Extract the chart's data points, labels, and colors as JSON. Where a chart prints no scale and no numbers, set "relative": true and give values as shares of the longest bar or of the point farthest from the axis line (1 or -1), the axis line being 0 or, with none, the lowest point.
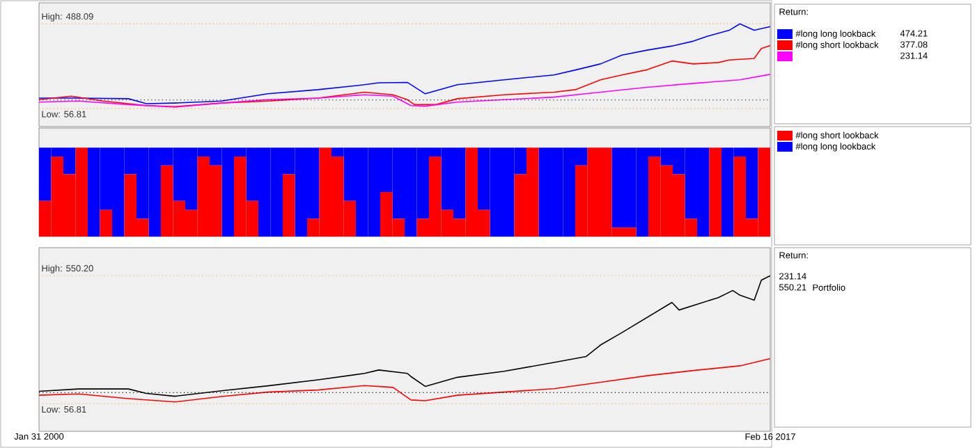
{
  "chart_data": [
    {
      "type": "line",
      "legend": "right",
      "legend_title": "Return:",
      "xlim": [
        "2000-01-31",
        "2017-02-16"
      ],
      "ylim": [
        -35,
        595
      ],
      "tick_labels": false,
      "series": [
        {
          "name": "#long long lookback",
          "color": "#0000ff",
          "x": [
            "2000-01-31",
            "2000-12",
            "2002-03",
            "2002-08",
            "2003-04",
            "2004-05",
            "2005-06",
            "2006-08",
            "2007-09",
            "2008-01",
            "2008-09",
            "2009-02",
            "2009-11",
            "2010-12",
            "2012-02",
            "2012-08",
            "2013-03",
            "2013-09",
            "2014-04",
            "2014-11",
            "2015-05",
            "2015-09",
            "2016-03",
            "2016-06",
            "2016-10",
            "2017-02-16"
          ],
          "values": [
            110,
            110,
            107,
            82,
            85,
            95,
            132,
            153,
            178,
            188,
            190,
            132,
            178,
            203,
            228,
            253,
            284,
            329,
            354,
            375,
            400,
            425,
            455,
            488,
            455,
            474
          ]
        },
        {
          "name": "#long short lookback",
          "color": "#ff0000",
          "x": [
            "2000-01-31",
            "2000-11",
            "2001-08",
            "2002-08",
            "2003-04",
            "2004-05",
            "2005-06",
            "2006-08",
            "2007-09",
            "2008-05",
            "2008-09",
            "2008-11",
            "2009-05",
            "2009-11",
            "2010-12",
            "2012-02",
            "2012-08",
            "2013-03",
            "2013-09",
            "2014-04",
            "2014-11",
            "2015-05",
            "2015-12",
            "2016-03",
            "2016-10",
            "2016-12",
            "2017-02-16"
          ],
          "values": [
            102,
            120,
            95,
            72,
            67,
            85,
            95,
            110,
            140,
            127,
            102,
            77,
            77,
            107,
            127,
            140,
            153,
            203,
            228,
            254,
            299,
            284,
            291,
            304,
            312,
            362,
            377
          ]
        },
        {
          "color": "#ff00ff",
          "x": [
            "2000-01-31",
            "2001-01",
            "2002-03",
            "2003-04",
            "2004-05",
            "2005-06",
            "2006-08",
            "2007-09",
            "2008-05",
            "2008-10",
            "2009-02",
            "2009-11",
            "2010-12",
            "2012-02",
            "2013-03",
            "2014-04",
            "2015-05",
            "2016-06",
            "2017-02-16"
          ],
          "values": [
            90,
            95,
            77,
            64,
            85,
            102,
            110,
            127,
            120,
            72,
            69,
            90,
            102,
            115,
            140,
            165,
            185,
            203,
            231
          ]
        }
      ],
      "ref_lines": [
        {
          "axis": "y",
          "value": 488.09,
          "label": "High: 488.09",
          "color": "#ffa040",
          "line_style": "dotted"
        },
        {
          "axis": "y",
          "value": 56.81,
          "label": "Low: 56.81",
          "color": "#ffa040",
          "line_style": "dotted"
        },
        {
          "axis": "y",
          "value": 100,
          "color": "#000000",
          "line_style": "dotted"
        }
      ],
      "annotations": [
        "474.21",
        "377.08",
        "231.14"
      ]
    },
    {
      "type": "bar",
      "stacked": true,
      "relative": true,
      "legend": "right",
      "tick_labels": false,
      "categories": [
        null,
        null,
        null,
        null,
        null,
        null,
        null,
        null,
        null,
        null,
        null,
        null,
        null,
        null,
        null,
        null,
        null,
        null,
        null,
        null,
        null,
        null,
        null,
        null,
        null,
        null,
        null,
        null,
        null,
        null,
        null,
        null,
        null,
        null,
        null,
        null,
        null,
        null,
        null,
        null,
        null,
        null,
        null,
        null,
        null,
        null,
        null,
        null,
        null,
        null,
        null,
        null,
        null,
        null,
        null,
        null,
        null,
        null,
        null,
        null
      ],
      "series": [
        {
          "name": "#long short lookback",
          "color": "#ff0000",
          "values": [
            0.4,
            0.9,
            0.7,
            1,
            0,
            0.3,
            0,
            0.7,
            0.2,
            0,
            0.8,
            0.4,
            0.3,
            0.9,
            0.8,
            0,
            0.9,
            0.4,
            0,
            0,
            0.7,
            0,
            0.2,
            1,
            0.9,
            0.4,
            0,
            0,
            0.5,
            0.2,
            0,
            0.2,
            0.9,
            0.3,
            0.2,
            1,
            0.3,
            0,
            0,
            0.7,
            1,
            0,
            0,
            0,
            0.8,
            1,
            1,
            0.1,
            0.1,
            0,
            0.9,
            0.8,
            0.7,
            0.2,
            0,
            1,
            0,
            0.9,
            0.2,
            1
          ]
        },
        {
          "name": "#long long lookback",
          "color": "#0000ff",
          "values": [
            0.6,
            0.1,
            0.3,
            0,
            1,
            0.7,
            1,
            0.3,
            0.8,
            1,
            0.2,
            0.6,
            0.7,
            0.1,
            0.2,
            1,
            0.1,
            0.6,
            1,
            1,
            0.3,
            1,
            0.8,
            0,
            0.1,
            0.6,
            1,
            1,
            0.5,
            0.8,
            1,
            0.8,
            0.1,
            0.7,
            0.8,
            0,
            0.7,
            1,
            1,
            0.3,
            0,
            1,
            1,
            1,
            0.2,
            0,
            0,
            0.9,
            0.9,
            1,
            0.1,
            0.2,
            0.3,
            0.8,
            1,
            0,
            1,
            0.1,
            0.8,
            0
          ]
        }
      ]
    },
    {
      "type": "line",
      "legend": "right",
      "legend_title": "Return:",
      "xlim": [
        "2000-01-31",
        "2017-02-16"
      ],
      "ylim": [
        -49,
        658
      ],
      "tick_labels": "x",
      "xticks": [
        {
          "value": "2000-01-31",
          "label": "Jan 31 2000"
        },
        {
          "value": "2017-02-16",
          "label": "Feb 16 2017"
        }
      ],
      "series": [
        {
          "color": "#ff0000",
          "x": [
            "2000-01-31",
            "2001-01",
            "2002-03",
            "2003-04",
            "2004-05",
            "2005-06",
            "2006-08",
            "2007-09",
            "2008-05",
            "2008-10",
            "2009-02",
            "2009-11",
            "2010-12",
            "2012-02",
            "2013-03",
            "2014-04",
            "2015-05",
            "2016-06",
            "2017-02-16"
          ],
          "values": [
            90,
            95,
            77,
            64,
            85,
            102,
            110,
            127,
            120,
            72,
            69,
            90,
            102,
            115,
            140,
            165,
            185,
            203,
            231
          ]
        },
        {
          "name": "Portfolio",
          "color": "#000000",
          "x": [
            "2000-01-31",
            "2001-01",
            "2002-03",
            "2002-08",
            "2003-04",
            "2004-05",
            "2005-06",
            "2006-08",
            "2007-09",
            "2008-01",
            "2008-09",
            "2008-10",
            "2009-02",
            "2009-11",
            "2010-12",
            "2012-02",
            "2012-11",
            "2013-03",
            "2013-09",
            "2014-04",
            "2014-11",
            "2015-01",
            "2015-12",
            "2016-04",
            "2016-06",
            "2016-10",
            "2016-12",
            "2017-02-16"
          ],
          "values": [
            105,
            114,
            114,
            97,
            86,
            107,
            126,
            149,
            174,
            187,
            174,
            162,
            124,
            159,
            182,
            216,
            239,
            283,
            331,
            389,
            447,
            418,
            466,
            493,
            475,
            456,
            533,
            550
          ]
        }
      ],
      "ref_lines": [
        {
          "axis": "y",
          "value": 550.2,
          "label": "High: 550.20",
          "color": "#ffa040",
          "line_style": "dotted"
        },
        {
          "axis": "y",
          "value": 56.81,
          "label": "Low: 56.81",
          "color": "#ffa040",
          "line_style": "dotted"
        },
        {
          "axis": "y",
          "value": 100,
          "color": "#000000",
          "line_style": "dotted"
        }
      ],
      "annotations": [
        "231.14",
        "550.21"
      ]
    }
  ]
}
